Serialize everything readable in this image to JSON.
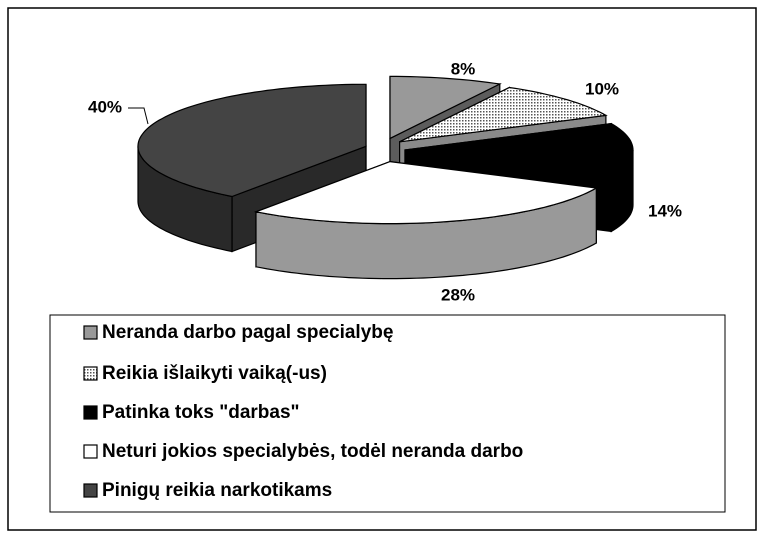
{
  "chart_data": {
    "type": "pie3d",
    "categories": [
      "Neranda darbo pagal specialybę",
      "Reikia išlaikyti vaiką(-us)",
      "Patinka toks \"darbas\"",
      "Neturi jokios specialybės, todėl neranda darbo",
      "Pinigų reikia narkotikams"
    ],
    "values": [
      8,
      10,
      14,
      28,
      40
    ],
    "value_labels": [
      "8%",
      "10%",
      "14%",
      "28%",
      "40%"
    ],
    "colors": [
      "#999999",
      "#e6e6e6",
      "#000000",
      "#ffffff",
      "#444444"
    ],
    "patterns": [
      null,
      "dots",
      null,
      null,
      null
    ],
    "legend": "bottom"
  }
}
